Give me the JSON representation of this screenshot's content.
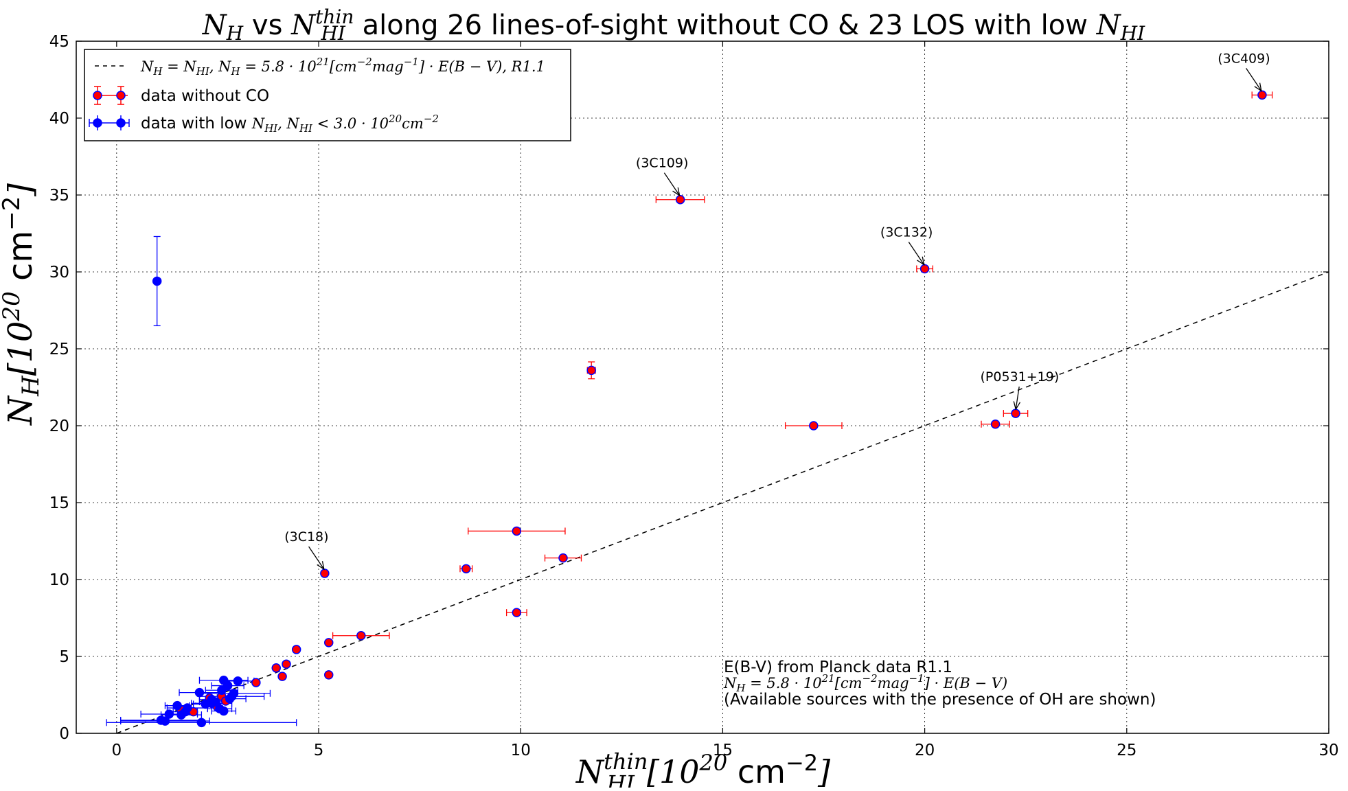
{
  "chart_data": {
    "type": "scatter",
    "title_parts": {
      "nh": "N",
      "nh_sub": "H",
      "vs": " vs ",
      "nhi": "N",
      "nhi_sub": "HI",
      "nhi_sup": "thin",
      "rest": " along 26 lines-of-sight without CO & 23 LOS with low ",
      "end": "N",
      "end_sub": "HI"
    },
    "xlabel_parts": {
      "n": "N",
      "sub": "HI",
      "sup": "thin",
      "bracket_open": "[10",
      "exp": "20",
      "unit": " cm",
      "unit_exp": "−2",
      "bracket_close": "]"
    },
    "ylabel_parts": {
      "n": "N",
      "sub": "H",
      "bracket_open": "[10",
      "exp": "20",
      "unit": " cm",
      "unit_exp": "−2",
      "bracket_close": "]"
    },
    "xlim": [
      -1,
      30
    ],
    "ylim": [
      0,
      45
    ],
    "xticks": [
      0,
      5,
      10,
      15,
      20,
      25,
      30
    ],
    "yticks": [
      0,
      5,
      10,
      15,
      20,
      25,
      30,
      35,
      40,
      45
    ],
    "grid": true,
    "legend_position": "top-left",
    "legend": [
      {
        "label": "N_H = N_HI, N_H = 5.8·10^21 [cm^-2 mag^-1]·E(B−V), R1.1",
        "style": "dashed-line"
      },
      {
        "label_text": "data without CO",
        "style": "red-errorbar"
      },
      {
        "label_text": "data with low ",
        "label_math": "N_HI, N_HI < 3.0·10^20 cm^-2",
        "style": "blue-errorbar"
      }
    ],
    "fit_line": {
      "label": "N_H = N_HI",
      "x": [
        0,
        30
      ],
      "y": [
        0,
        30
      ],
      "color": "#000000",
      "dash": true
    },
    "series": [
      {
        "name": "data without CO",
        "marker_color": "#ff0000",
        "edge_color": "#0000ff",
        "errbar_color": "#ff0000",
        "points": [
          {
            "x": 28.35,
            "y": 41.5,
            "xerr": 0.25,
            "yerr": 0.15
          },
          {
            "x": 13.95,
            "y": 34.7,
            "xerr": 0.6,
            "yerr": 0.1
          },
          {
            "x": 20.0,
            "y": 30.2,
            "xerr": 0.2,
            "yerr": 0.15
          },
          {
            "x": 11.75,
            "y": 23.6,
            "xerr": 0.1,
            "yerr": 0.55
          },
          {
            "x": 17.25,
            "y": 20.0,
            "xerr": 0.7,
            "yerr": 0.1
          },
          {
            "x": 21.75,
            "y": 20.1,
            "xerr": 0.35,
            "yerr": 0.15
          },
          {
            "x": 22.25,
            "y": 20.8,
            "xerr": 0.3,
            "yerr": 0.15
          },
          {
            "x": 9.9,
            "y": 13.15,
            "xerr": 1.2,
            "yerr": 0.1
          },
          {
            "x": 11.05,
            "y": 11.4,
            "xerr": 0.45,
            "yerr": 0.15
          },
          {
            "x": 8.65,
            "y": 10.7,
            "xerr": 0.15,
            "yerr": 0.1
          },
          {
            "x": 5.15,
            "y": 10.4,
            "xerr": 0.05,
            "yerr": 0.1
          },
          {
            "x": 9.9,
            "y": 7.85,
            "xerr": 0.25,
            "yerr": 0.1
          },
          {
            "x": 6.05,
            "y": 6.35,
            "xerr": 0.7,
            "yerr": 0.1
          },
          {
            "x": 5.25,
            "y": 5.9,
            "xerr": 0.05,
            "yerr": 0.1
          },
          {
            "x": 4.45,
            "y": 5.45,
            "xerr": 0.05,
            "yerr": 0.1
          },
          {
            "x": 5.25,
            "y": 3.8,
            "xerr": 0.05,
            "yerr": 0.15
          },
          {
            "x": 3.95,
            "y": 4.25,
            "xerr": 0.05,
            "yerr": 0.1
          },
          {
            "x": 4.2,
            "y": 4.5,
            "xerr": 0.05,
            "yerr": 0.1
          },
          {
            "x": 4.1,
            "y": 3.7,
            "xerr": 0.05,
            "yerr": 0.1
          },
          {
            "x": 3.45,
            "y": 3.3,
            "xerr": 0.05,
            "yerr": 0.1
          },
          {
            "x": 2.6,
            "y": 2.4,
            "xerr": 0.05,
            "yerr": 0.1
          },
          {
            "x": 2.3,
            "y": 2.3,
            "xerr": 0.05,
            "yerr": 0.1
          },
          {
            "x": 2.7,
            "y": 2.1,
            "xerr": 0.05,
            "yerr": 0.1
          },
          {
            "x": 2.5,
            "y": 1.7,
            "xerr": 0.05,
            "yerr": 0.1
          },
          {
            "x": 1.9,
            "y": 1.4,
            "xerr": 0.05,
            "yerr": 0.1
          },
          {
            "x": 1.6,
            "y": 1.5,
            "xerr": 0.05,
            "yerr": 0.1
          }
        ]
      },
      {
        "name": "data with low N_HI, N_HI < 3.0·10^20 cm^-2",
        "marker_color": "#0000ff",
        "edge_color": "#0000ff",
        "errbar_color": "#0000ff",
        "points": [
          {
            "x": 1.0,
            "y": 29.4,
            "xerr": 0.0,
            "yerr": 2.9
          },
          {
            "x": 2.65,
            "y": 3.45,
            "xerr": 0.6,
            "yerr": 0.1
          },
          {
            "x": 3.0,
            "y": 3.4,
            "xerr": 0.4,
            "yerr": 0.1
          },
          {
            "x": 2.75,
            "y": 3.1,
            "xerr": 0.4,
            "yerr": 0.1
          },
          {
            "x": 2.05,
            "y": 2.65,
            "xerr": 0.5,
            "yerr": 0.1
          },
          {
            "x": 2.9,
            "y": 2.6,
            "xerr": 0.9,
            "yerr": 0.1
          },
          {
            "x": 2.85,
            "y": 2.4,
            "xerr": 0.8,
            "yerr": 0.1
          },
          {
            "x": 2.8,
            "y": 2.25,
            "xerr": 0.4,
            "yerr": 0.1
          },
          {
            "x": 2.45,
            "y": 2.05,
            "xerr": 0.4,
            "yerr": 0.1
          },
          {
            "x": 2.35,
            "y": 1.95,
            "xerr": 0.5,
            "yerr": 0.1
          },
          {
            "x": 1.75,
            "y": 1.65,
            "xerr": 0.5,
            "yerr": 0.1
          },
          {
            "x": 2.55,
            "y": 1.6,
            "xerr": 0.3,
            "yerr": 0.1
          },
          {
            "x": 1.5,
            "y": 1.8,
            "xerr": 0.3,
            "yerr": 0.1
          },
          {
            "x": 2.65,
            "y": 1.45,
            "xerr": 0.3,
            "yerr": 0.1
          },
          {
            "x": 1.6,
            "y": 1.2,
            "xerr": 0.5,
            "yerr": 0.1
          },
          {
            "x": 1.3,
            "y": 1.25,
            "xerr": 0.7,
            "yerr": 0.1
          },
          {
            "x": 1.1,
            "y": 0.85,
            "xerr": 1.0,
            "yerr": 0.1
          },
          {
            "x": 1.2,
            "y": 0.8,
            "xerr": 1.1,
            "yerr": 0.1
          },
          {
            "x": 2.1,
            "y": 0.7,
            "xerr": 2.35,
            "yerr": 0.1
          },
          {
            "x": 2.35,
            "y": 2.2,
            "xerr": 0.3,
            "yerr": 0.1
          },
          {
            "x": 2.6,
            "y": 2.8,
            "xerr": 0.4,
            "yerr": 0.1
          },
          {
            "x": 2.2,
            "y": 1.9,
            "xerr": 0.3,
            "yerr": 0.1
          },
          {
            "x": 1.7,
            "y": 1.4,
            "xerr": 0.3,
            "yerr": 0.1
          }
        ]
      }
    ],
    "annotations": [
      {
        "text": "(3C409)",
        "text_x": 27.9,
        "text_y": 43.6,
        "point_x": 28.35,
        "point_y": 41.5
      },
      {
        "text": "(3C109)",
        "text_x": 13.5,
        "text_y": 36.8,
        "point_x": 13.95,
        "point_y": 34.7
      },
      {
        "text": "(3C132)",
        "text_x": 19.55,
        "text_y": 32.3,
        "point_x": 20.0,
        "point_y": 30.2
      },
      {
        "text": "(P0531+19)",
        "text_x": 22.35,
        "text_y": 22.9,
        "point_x": 22.25,
        "point_y": 20.8
      },
      {
        "text": "(3C18)",
        "text_x": 4.7,
        "text_y": 12.5,
        "point_x": 5.15,
        "point_y": 10.4
      }
    ],
    "note_lines": [
      {
        "kind": "text",
        "value": "E(B-V) from Planck data R1.1"
      },
      {
        "kind": "math",
        "value": "N_H = 5.8·10^21 [cm^-2 mag^-1]·E(B − V)"
      },
      {
        "kind": "text",
        "value": "(Available sources with the presence of OH are shown)"
      }
    ]
  }
}
